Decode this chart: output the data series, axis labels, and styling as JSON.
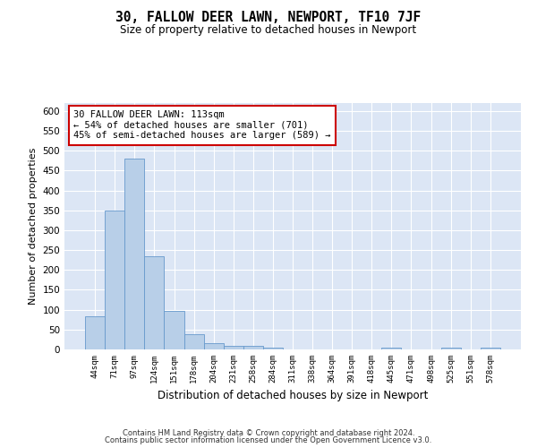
{
  "title": "30, FALLOW DEER LAWN, NEWPORT, TF10 7JF",
  "subtitle": "Size of property relative to detached houses in Newport",
  "xlabel": "Distribution of detached houses by size in Newport",
  "ylabel": "Number of detached properties",
  "bar_color": "#b8cfe8",
  "bar_edge_color": "#6699cc",
  "background_color": "#dce6f5",
  "grid_color": "#ffffff",
  "annotation_box_color": "#cc0000",
  "categories": [
    "44sqm",
    "71sqm",
    "97sqm",
    "124sqm",
    "151sqm",
    "178sqm",
    "204sqm",
    "231sqm",
    "258sqm",
    "284sqm",
    "311sqm",
    "338sqm",
    "364sqm",
    "391sqm",
    "418sqm",
    "445sqm",
    "471sqm",
    "498sqm",
    "525sqm",
    "551sqm",
    "578sqm"
  ],
  "values": [
    83,
    350,
    480,
    235,
    97,
    38,
    16,
    8,
    8,
    5,
    0,
    0,
    0,
    0,
    0,
    5,
    0,
    0,
    5,
    0,
    5
  ],
  "ylim": [
    0,
    620
  ],
  "yticks": [
    0,
    50,
    100,
    150,
    200,
    250,
    300,
    350,
    400,
    450,
    500,
    550,
    600
  ],
  "annotation_line1": "30 FALLOW DEER LAWN: 113sqm",
  "annotation_line2": "← 54% of detached houses are smaller (701)",
  "annotation_line3": "45% of semi-detached houses are larger (589) →",
  "property_bin_index": 2,
  "footer_line1": "Contains HM Land Registry data © Crown copyright and database right 2024.",
  "footer_line2": "Contains public sector information licensed under the Open Government Licence v3.0."
}
